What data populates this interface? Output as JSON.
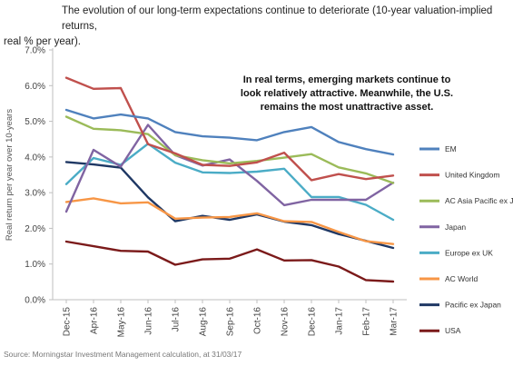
{
  "title_line1": "The evolution of our long-term expectations continue to deteriorate (10-year valuation-implied returns,",
  "title_line2": "real % per year).",
  "source": "Source: Morningstar Investment Management calculation, at 31/03/17",
  "colors": {
    "EM": "#4f81bd",
    "United Kingdom": "#c0504d",
    "AC Asia Pacific ex JP": "#9bbb59",
    "Japan": "#8064a2",
    "Europe ex UK": "#4bacc6",
    "AC World": "#f79646",
    "Pacific ex Japan": "#1f3864",
    "USA": "#7b1a1a"
  },
  "chart_data": {
    "type": "line",
    "title": "",
    "xlabel": "",
    "ylabel": "Real return per year over 10-years",
    "ylim": [
      0,
      7
    ],
    "yticks": [
      0,
      1,
      2,
      3,
      4,
      5,
      6,
      7
    ],
    "ytick_labels": [
      "0.0%",
      "1.0%",
      "2.0%",
      "3.0%",
      "4.0%",
      "5.0%",
      "6.0%",
      "7.0%"
    ],
    "grid": false,
    "legend_position": "right",
    "annotation": [
      "In real terms, emerging markets continue to",
      "look relatively attractive. Meanwhile, the U.S.",
      "remains the most unattractive asset."
    ],
    "x": [
      "Dec-15",
      "Apr-16",
      "May-16",
      "Jun-16",
      "Jul-16",
      "Aug-16",
      "Sep-16",
      "Oct-16",
      "Nov-16",
      "Dec-16",
      "Jan-17",
      "Feb-17",
      "Mar-17"
    ],
    "series": [
      {
        "name": "EM",
        "values": [
          5.32,
          5.08,
          5.19,
          5.08,
          4.7,
          4.58,
          4.54,
          4.47,
          4.7,
          4.84,
          4.42,
          4.22,
          4.07
        ]
      },
      {
        "name": "United Kingdom",
        "values": [
          6.22,
          5.91,
          5.93,
          4.36,
          4.1,
          3.78,
          3.75,
          3.85,
          4.12,
          3.35,
          3.52,
          3.38,
          3.48
        ]
      },
      {
        "name": "AC Asia Pacific ex JP",
        "values": [
          5.13,
          4.79,
          4.75,
          4.64,
          4.05,
          3.91,
          3.82,
          3.89,
          3.98,
          4.08,
          3.71,
          3.54,
          3.27
        ]
      },
      {
        "name": "Japan",
        "values": [
          2.47,
          4.2,
          3.73,
          4.9,
          4.05,
          3.76,
          3.93,
          3.33,
          2.65,
          2.8,
          2.8,
          2.8,
          3.28
        ]
      },
      {
        "name": "Europe ex UK",
        "values": [
          3.24,
          3.97,
          3.78,
          4.37,
          3.84,
          3.57,
          3.55,
          3.59,
          3.67,
          2.88,
          2.88,
          2.66,
          2.24
        ]
      },
      {
        "name": "AC World",
        "values": [
          2.74,
          2.84,
          2.7,
          2.73,
          2.27,
          2.3,
          2.32,
          2.42,
          2.2,
          2.18,
          1.9,
          1.64,
          1.56
        ]
      },
      {
        "name": "Pacific ex Japan",
        "values": [
          3.86,
          3.79,
          3.7,
          2.87,
          2.2,
          2.35,
          2.24,
          2.39,
          2.19,
          2.09,
          1.84,
          1.65,
          1.45
        ]
      },
      {
        "name": "USA",
        "values": [
          1.63,
          1.5,
          1.37,
          1.35,
          0.98,
          1.13,
          1.15,
          1.41,
          1.1,
          1.11,
          0.93,
          0.55,
          0.51
        ]
      }
    ]
  }
}
